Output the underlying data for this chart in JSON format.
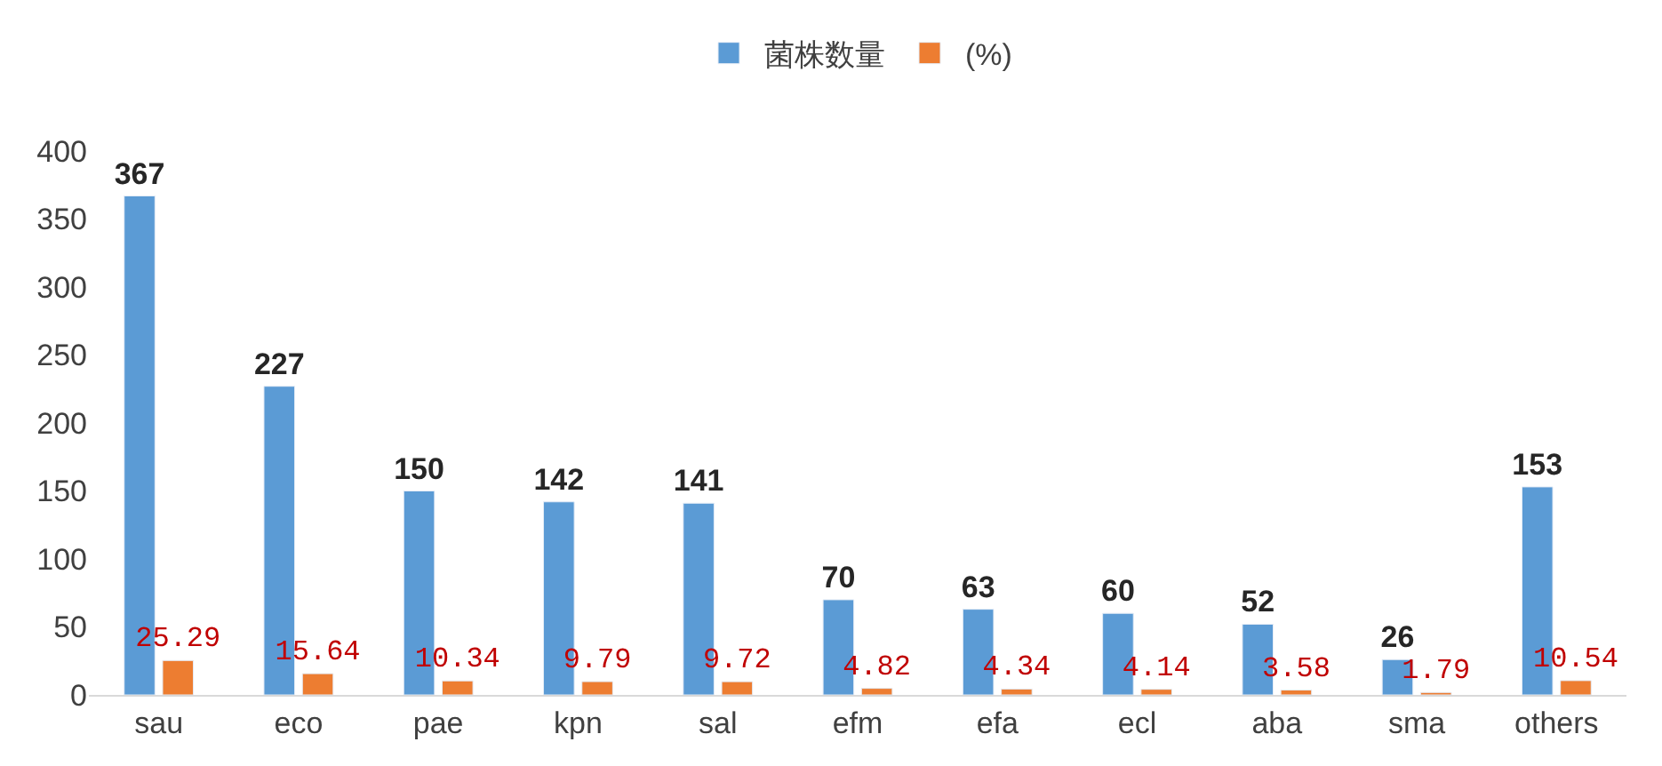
{
  "chart_data": {
    "type": "bar",
    "categories": [
      "sau",
      "eco",
      "pae",
      "kpn",
      "sal",
      "efm",
      "efa",
      "ecl",
      "aba",
      "sma",
      "others"
    ],
    "series": [
      {
        "name": "菌株数量",
        "color": "#5b9bd5",
        "values": [
          367,
          227,
          150,
          142,
          141,
          70,
          63,
          60,
          52,
          26,
          153
        ]
      },
      {
        "name": "(%)",
        "color": "#ed7d31",
        "values": [
          25.29,
          15.64,
          10.34,
          9.79,
          9.72,
          4.82,
          4.34,
          4.14,
          3.58,
          1.79,
          10.54
        ]
      }
    ],
    "ylim": [
      0,
      400
    ],
    "yticks": [
      0,
      50,
      100,
      150,
      200,
      250,
      300,
      350,
      400
    ],
    "legend": "top",
    "data_labels": true
  }
}
